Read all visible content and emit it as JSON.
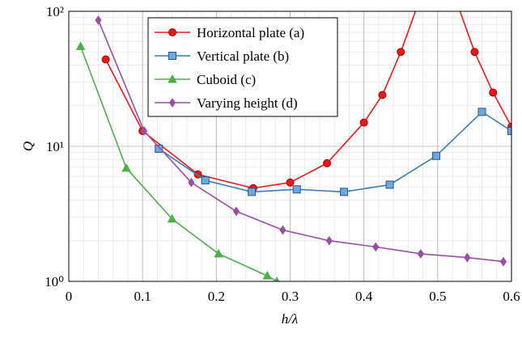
{
  "chart_data": {
    "type": "line",
    "xlabel": "h/λ",
    "ylabel": "Q",
    "xlim": [
      0,
      0.6
    ],
    "xticks": [
      0,
      0.1,
      0.2,
      0.3,
      0.4,
      0.5,
      0.6
    ],
    "ylim": [
      1,
      100
    ],
    "log_y": true,
    "yticks": [
      {
        "value": 1,
        "label": "10⁰"
      },
      {
        "value": 10,
        "label": "10¹"
      },
      {
        "value": 100,
        "label": "10²"
      }
    ],
    "grid": true,
    "legend": "upper center",
    "series": [
      {
        "name": "Horizontal plate (a)",
        "color": "#e41a1c",
        "marker": "circle",
        "x": [
          0.05,
          0.1,
          0.175,
          0.25,
          0.3,
          0.35,
          0.4,
          0.425,
          0.45,
          0.475,
          0.525,
          0.55,
          0.575,
          0.6
        ],
        "values": [
          44,
          13,
          6.2,
          4.9,
          5.4,
          7.5,
          15,
          24,
          50,
          120,
          120,
          50,
          25,
          14
        ]
      },
      {
        "name": "Vertical plate (b)",
        "color": "#377eb8",
        "marker": "square",
        "x": [
          0.122,
          0.185,
          0.248,
          0.309,
          0.373,
          0.435,
          0.498,
          0.56,
          0.6
        ],
        "values": [
          9.6,
          5.6,
          4.6,
          4.8,
          4.6,
          5.2,
          8.5,
          18,
          13
        ]
      },
      {
        "name": "Cuboid (c)",
        "color": "#4daf4a",
        "marker": "triangle",
        "x": [
          0.016,
          0.078,
          0.14,
          0.203,
          0.269,
          0.282
        ],
        "values": [
          55,
          6.9,
          2.9,
          1.6,
          1.1,
          1.0
        ]
      },
      {
        "name": "Varying height (d)",
        "color": "#984ea3",
        "marker": "diamond",
        "x": [
          0.04,
          0.102,
          0.166,
          0.227,
          0.29,
          0.353,
          0.416,
          0.477,
          0.54,
          0.589
        ],
        "values": [
          86,
          13,
          5.4,
          3.3,
          2.4,
          2.0,
          1.8,
          1.6,
          1.5,
          1.4
        ]
      }
    ]
  }
}
